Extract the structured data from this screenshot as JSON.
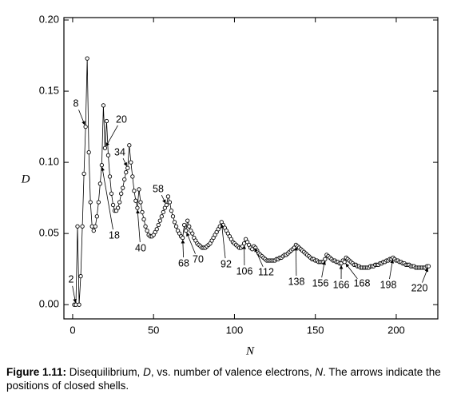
{
  "chart_data": {
    "type": "line",
    "x_label": "N",
    "y_label": "D",
    "x": [
      1,
      2,
      3,
      4,
      5,
      6,
      7,
      8,
      9,
      10,
      11,
      12,
      13,
      14,
      15,
      16,
      17,
      18,
      19,
      20,
      21,
      22,
      23,
      24,
      25,
      26,
      27,
      28,
      29,
      30,
      31,
      32,
      33,
      34,
      35,
      36,
      37,
      38,
      39,
      40,
      41,
      42,
      43,
      44,
      45,
      46,
      47,
      48,
      49,
      50,
      51,
      52,
      53,
      54,
      55,
      56,
      57,
      58,
      59,
      60,
      61,
      62,
      63,
      64,
      65,
      66,
      67,
      68,
      69,
      70,
      71,
      72,
      73,
      74,
      75,
      76,
      77,
      78,
      79,
      80,
      81,
      82,
      83,
      84,
      85,
      86,
      87,
      88,
      89,
      90,
      91,
      92,
      93,
      94,
      95,
      96,
      97,
      98,
      99,
      100,
      101,
      102,
      103,
      104,
      105,
      106,
      107,
      108,
      109,
      110,
      111,
      112,
      113,
      114,
      115,
      116,
      117,
      118,
      119,
      120,
      121,
      122,
      123,
      124,
      125,
      126,
      127,
      128,
      129,
      130,
      131,
      132,
      133,
      134,
      135,
      136,
      137,
      138,
      139,
      140,
      141,
      142,
      143,
      144,
      145,
      146,
      147,
      148,
      149,
      150,
      151,
      152,
      153,
      154,
      155,
      156,
      157,
      158,
      159,
      160,
      161,
      162,
      163,
      164,
      165,
      166,
      167,
      168,
      169,
      170,
      171,
      172,
      173,
      174,
      175,
      176,
      177,
      178,
      179,
      180,
      181,
      182,
      183,
      184,
      185,
      186,
      187,
      188,
      189,
      190,
      191,
      192,
      193,
      194,
      195,
      196,
      197,
      198,
      199,
      200,
      201,
      202,
      203,
      204,
      205,
      206,
      207,
      208,
      209,
      210,
      211,
      212,
      213,
      214,
      215,
      216,
      217,
      218,
      219,
      220
    ],
    "values": [
      0,
      0,
      0.055,
      0,
      0.02,
      0.055,
      0.092,
      0.125,
      0.173,
      0.107,
      0.072,
      0.055,
      0.052,
      0.055,
      0.062,
      0.072,
      0.085,
      0.098,
      0.14,
      0.11,
      0.129,
      0.105,
      0.09,
      0.078,
      0.07,
      0.066,
      0.066,
      0.068,
      0.072,
      0.078,
      0.082,
      0.088,
      0.093,
      0.096,
      0.112,
      0.1,
      0.09,
      0.08,
      0.073,
      0.068,
      0.081,
      0.072,
      0.065,
      0.06,
      0.055,
      0.052,
      0.049,
      0.048,
      0.048,
      0.049,
      0.051,
      0.053,
      0.056,
      0.059,
      0.062,
      0.065,
      0.068,
      0.07,
      0.076,
      0.072,
      0.066,
      0.062,
      0.058,
      0.055,
      0.052,
      0.05,
      0.048,
      0.047,
      0.056,
      0.052,
      0.059,
      0.055,
      0.052,
      0.05,
      0.047,
      0.045,
      0.043,
      0.042,
      0.041,
      0.04,
      0.04,
      0.04,
      0.041,
      0.042,
      0.043,
      0.045,
      0.047,
      0.049,
      0.051,
      0.053,
      0.055,
      0.058,
      0.056,
      0.054,
      0.052,
      0.05,
      0.048,
      0.046,
      0.044,
      0.043,
      0.042,
      0.041,
      0.04,
      0.04,
      0.041,
      0.043,
      0.046,
      0.044,
      0.042,
      0.04,
      0.039,
      0.041,
      0.04,
      0.038,
      0.036,
      0.035,
      0.034,
      0.033,
      0.032,
      0.031,
      0.031,
      0.031,
      0.031,
      0.031,
      0.031,
      0.032,
      0.032,
      0.033,
      0.033,
      0.034,
      0.035,
      0.035,
      0.036,
      0.037,
      0.038,
      0.039,
      0.04,
      0.042,
      0.041,
      0.04,
      0.039,
      0.038,
      0.037,
      0.036,
      0.035,
      0.034,
      0.033,
      0.032,
      0.032,
      0.031,
      0.031,
      0.03,
      0.03,
      0.03,
      0.03,
      0.032,
      0.035,
      0.034,
      0.033,
      0.032,
      0.031,
      0.031,
      0.03,
      0.03,
      0.029,
      0.029,
      0.031,
      0.03,
      0.033,
      0.032,
      0.031,
      0.03,
      0.029,
      0.028,
      0.028,
      0.027,
      0.027,
      0.026,
      0.026,
      0.026,
      0.026,
      0.026,
      0.026,
      0.027,
      0.027,
      0.027,
      0.028,
      0.028,
      0.028,
      0.029,
      0.029,
      0.03,
      0.03,
      0.031,
      0.031,
      0.032,
      0.032,
      0.033,
      0.032,
      0.031,
      0.031,
      0.03,
      0.03,
      0.029,
      0.029,
      0.028,
      0.028,
      0.028,
      0.027,
      0.027,
      0.027,
      0.026,
      0.026,
      0.026,
      0.026,
      0.026,
      0.026,
      0.026,
      0.027,
      0.027
    ],
    "color": "#000000",
    "xlim": [
      -5.4,
      225.7
    ],
    "xticks": [
      0,
      50,
      100,
      150,
      200
    ],
    "ylim": [
      -0.01,
      0.2017
    ],
    "yticks": [
      {
        "value": 0,
        "label": "0.00"
      },
      {
        "value": 0.05,
        "label": "0.05"
      },
      {
        "value": 0.1,
        "label": "0.10"
      },
      {
        "value": 0.15,
        "label": "0.15"
      },
      {
        "value": 0.2,
        "label": "0.20"
      }
    ],
    "annotations": [
      2,
      8,
      18,
      20,
      34,
      40,
      58,
      68,
      70,
      92,
      106,
      112,
      138,
      156,
      166,
      168,
      198,
      220
    ],
    "caption": [
      "Figure 1.11:",
      " Disequilibrium, ",
      "D",
      ", vs. number of valence electrons, ",
      "N",
      ". The arrows indicate the positions of closed shells."
    ]
  }
}
